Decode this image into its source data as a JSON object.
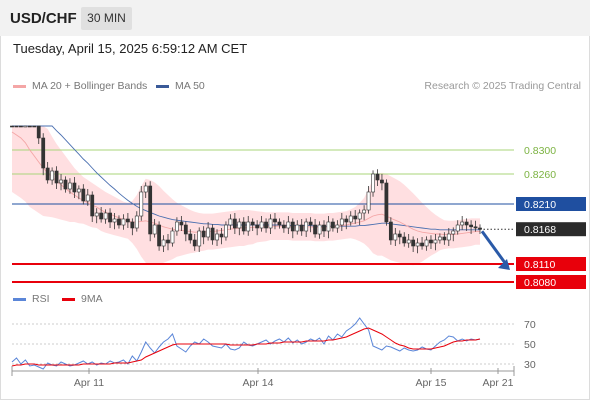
{
  "header": {
    "symbol": "USD/CHF",
    "timeframe": "30 MIN",
    "datetime": "Tuesday, April 15, 2025 6:59:12 AM CET"
  },
  "legend": {
    "ma20_label": "MA 20 + Bollinger Bands",
    "ma50_label": "MA 50",
    "rsi_label": "RSI",
    "rsi_ma_label": "9MA",
    "credit": "Research © 2025 Trading Central"
  },
  "colors": {
    "candle": "#333333",
    "band_fill": "#ffd9dc",
    "ma20": "#f4a6a6",
    "ma50": "#4a6fb0",
    "resistance": "#a8d47a",
    "support": "#e8000b",
    "pivot": "#1f4fa0",
    "rsi": "#5b86d8",
    "rsi_ma": "#e8000b",
    "arrow": "#2a5aa8"
  },
  "chart_data": [
    {
      "type": "candlestick",
      "title": "USD/CHF",
      "timeframe": "30 MIN",
      "ylim": [
        0.807,
        0.839
      ],
      "last_price": 0.8168,
      "levels": [
        {
          "label": "0.8300",
          "value": 0.83,
          "kind": "resistance"
        },
        {
          "label": "0.8260",
          "value": 0.826,
          "kind": "resistance"
        },
        {
          "label": "0.8210",
          "value": 0.821,
          "kind": "pivot"
        },
        {
          "label": "0.8168",
          "value": 0.8168,
          "kind": "last"
        },
        {
          "label": "0.8110",
          "value": 0.811,
          "kind": "support"
        },
        {
          "label": "0.8080",
          "value": 0.808,
          "kind": "support"
        }
      ],
      "x_ticks": [
        "Apr 11",
        "Apr 14",
        "Apr 15",
        "Apr 21"
      ],
      "close": [
        0.844,
        0.842,
        0.84,
        0.842,
        0.8395,
        0.836,
        0.832,
        0.827,
        0.825,
        0.8265,
        0.8245,
        0.825,
        0.8235,
        0.8245,
        0.823,
        0.8235,
        0.8215,
        0.8225,
        0.819,
        0.8195,
        0.8185,
        0.8195,
        0.818,
        0.8185,
        0.8175,
        0.8185,
        0.818,
        0.817,
        0.819,
        0.823,
        0.824,
        0.816,
        0.8175,
        0.814,
        0.815,
        0.8145,
        0.8165,
        0.818,
        0.8175,
        0.816,
        0.815,
        0.814,
        0.8165,
        0.8155,
        0.817,
        0.815,
        0.816,
        0.8155,
        0.8175,
        0.8185,
        0.817,
        0.818,
        0.8165,
        0.818,
        0.8175,
        0.817,
        0.818,
        0.817,
        0.8185,
        0.818,
        0.8175,
        0.817,
        0.818,
        0.8165,
        0.8175,
        0.8165,
        0.818,
        0.8175,
        0.816,
        0.8175,
        0.8165,
        0.818,
        0.817,
        0.8175,
        0.8185,
        0.818,
        0.819,
        0.8185,
        0.8195,
        0.82,
        0.823,
        0.826,
        0.825,
        0.8245,
        0.818,
        0.815,
        0.816,
        0.8155,
        0.8145,
        0.815,
        0.814,
        0.8145,
        0.814,
        0.815,
        0.8145,
        0.815,
        0.8155,
        0.815,
        0.816,
        0.8165,
        0.8175,
        0.818,
        0.8175,
        0.8172,
        0.817,
        0.8168
      ],
      "ma20": [
        0.833,
        0.8325,
        0.832,
        0.8312,
        0.83,
        0.829,
        0.828,
        0.827,
        0.8262,
        0.8255,
        0.8248,
        0.8242,
        0.8236,
        0.823,
        0.8225,
        0.822,
        0.8216,
        0.8212,
        0.8208,
        0.8205,
        0.82,
        0.8196,
        0.8193,
        0.819,
        0.8187,
        0.8184,
        0.8182,
        0.818,
        0.818,
        0.8181,
        0.8182,
        0.818,
        0.8178,
        0.8175,
        0.8172,
        0.817,
        0.8168,
        0.8167,
        0.8166,
        0.8165,
        0.8164,
        0.8163,
        0.8163,
        0.8163,
        0.8164,
        0.8164,
        0.8165,
        0.8166,
        0.8167,
        0.8168,
        0.8169,
        0.817,
        0.817,
        0.8171,
        0.8171,
        0.8172,
        0.8172,
        0.8172,
        0.8173,
        0.8173,
        0.8173,
        0.8173,
        0.8173,
        0.8172,
        0.8172,
        0.8172,
        0.8172,
        0.8172,
        0.8171,
        0.8171,
        0.8171,
        0.8172,
        0.8172,
        0.8173,
        0.8174,
        0.8175,
        0.8177,
        0.8178,
        0.818,
        0.8182,
        0.8186,
        0.819,
        0.8192,
        0.8193,
        0.819,
        0.8186,
        0.8183,
        0.818,
        0.8176,
        0.8172,
        0.8168,
        0.8165,
        0.8163,
        0.8162,
        0.8161,
        0.816,
        0.816,
        0.8159,
        0.8159,
        0.8159,
        0.816,
        0.8161,
        0.8162,
        0.8163,
        0.8164,
        0.8164
      ],
      "ma50": [
        0.839,
        0.8387,
        0.8384,
        0.838,
        0.8375,
        0.8369,
        0.8362,
        0.8355,
        0.8347,
        0.834,
        0.8332,
        0.8325,
        0.8317,
        0.8309,
        0.8301,
        0.8293,
        0.8285,
        0.8278,
        0.827,
        0.8262,
        0.8255,
        0.8248,
        0.8241,
        0.8235,
        0.8228,
        0.8222,
        0.8216,
        0.8211,
        0.8206,
        0.8202,
        0.8199,
        0.8196,
        0.8193,
        0.819,
        0.8188,
        0.8186,
        0.8184,
        0.8183,
        0.8182,
        0.8181,
        0.818,
        0.8179,
        0.8178,
        0.8177,
        0.8177,
        0.8176,
        0.8176,
        0.8175,
        0.8175,
        0.8175,
        0.8175,
        0.8175,
        0.8175,
        0.8175,
        0.8175,
        0.8175,
        0.8175,
        0.8175,
        0.8175,
        0.8175,
        0.8175,
        0.8174,
        0.8174,
        0.8174,
        0.8174,
        0.8174,
        0.8174,
        0.8174,
        0.8173,
        0.8173,
        0.8173,
        0.8173,
        0.8173,
        0.8173,
        0.8173,
        0.8173,
        0.8173,
        0.8173,
        0.8174,
        0.8174,
        0.8175,
        0.8176,
        0.8177,
        0.8178,
        0.8178,
        0.8177,
        0.8176,
        0.8175,
        0.8174,
        0.8173,
        0.8172,
        0.8171,
        0.817,
        0.8169,
        0.8168,
        0.8168,
        0.8167,
        0.8167,
        0.8167,
        0.8167,
        0.8167,
        0.8167,
        0.8167,
        0.8167,
        0.8167,
        0.8167
      ],
      "band_upper": [
        0.843,
        0.8425,
        0.842,
        0.841,
        0.8395,
        0.838,
        0.8365,
        0.835,
        0.8335,
        0.8322,
        0.831,
        0.83,
        0.829,
        0.828,
        0.827,
        0.8262,
        0.8255,
        0.825,
        0.8245,
        0.824,
        0.8235,
        0.823,
        0.8226,
        0.8222,
        0.8218,
        0.8214,
        0.8212,
        0.8215,
        0.8225,
        0.824,
        0.8252,
        0.825,
        0.8246,
        0.824,
        0.8232,
        0.8225,
        0.8218,
        0.8212,
        0.8208,
        0.8204,
        0.82,
        0.8197,
        0.8195,
        0.8194,
        0.8194,
        0.8194,
        0.8195,
        0.8196,
        0.8197,
        0.8198,
        0.8199,
        0.82,
        0.82,
        0.82,
        0.8199,
        0.8198,
        0.8197,
        0.8196,
        0.8196,
        0.8196,
        0.8196,
        0.8196,
        0.8196,
        0.8195,
        0.8195,
        0.8195,
        0.8195,
        0.8195,
        0.8194,
        0.8194,
        0.8194,
        0.8195,
        0.8195,
        0.8196,
        0.8197,
        0.8198,
        0.8201,
        0.8205,
        0.8212,
        0.822,
        0.8235,
        0.8252,
        0.826,
        0.8262,
        0.826,
        0.8256,
        0.8252,
        0.8248,
        0.8242,
        0.8235,
        0.8228,
        0.822,
        0.8212,
        0.8205,
        0.8198,
        0.8192,
        0.8187,
        0.8183,
        0.8182,
        0.8182,
        0.8183,
        0.8184,
        0.8185,
        0.8186,
        0.8186,
        0.8186
      ],
      "band_lower": [
        0.823,
        0.8225,
        0.822,
        0.8214,
        0.8205,
        0.82,
        0.8195,
        0.819,
        0.8189,
        0.8188,
        0.8186,
        0.8184,
        0.8182,
        0.818,
        0.818,
        0.8178,
        0.8177,
        0.8174,
        0.8171,
        0.817,
        0.8165,
        0.8162,
        0.816,
        0.8158,
        0.8156,
        0.8154,
        0.8152,
        0.8145,
        0.8135,
        0.8122,
        0.8112,
        0.811,
        0.811,
        0.811,
        0.8112,
        0.8115,
        0.8118,
        0.8122,
        0.8124,
        0.8126,
        0.8128,
        0.8129,
        0.8131,
        0.8132,
        0.8134,
        0.8134,
        0.8135,
        0.8136,
        0.8137,
        0.8138,
        0.8139,
        0.814,
        0.814,
        0.8142,
        0.8143,
        0.8146,
        0.8147,
        0.8148,
        0.815,
        0.815,
        0.815,
        0.815,
        0.815,
        0.8149,
        0.8149,
        0.8149,
        0.8149,
        0.8149,
        0.8148,
        0.8148,
        0.8148,
        0.8149,
        0.8149,
        0.815,
        0.8151,
        0.8152,
        0.8153,
        0.8151,
        0.8148,
        0.8144,
        0.8137,
        0.8128,
        0.8124,
        0.8124,
        0.812,
        0.8116,
        0.8114,
        0.8112,
        0.811,
        0.8109,
        0.8108,
        0.811,
        0.8114,
        0.8119,
        0.8124,
        0.8128,
        0.8133,
        0.8135,
        0.8136,
        0.8136,
        0.8137,
        0.8138,
        0.8139,
        0.814,
        0.8142,
        0.8142
      ]
    },
    {
      "type": "line",
      "title": "RSI",
      "ylim": [
        22,
        82
      ],
      "y_ticks": [
        70,
        50,
        30
      ],
      "series": [
        {
          "name": "RSI",
          "values": [
            32,
            36,
            30,
            34,
            28,
            29,
            27,
            25,
            31,
            29,
            28,
            32,
            30,
            28,
            29,
            31,
            33,
            30,
            32,
            29,
            31,
            30,
            33,
            31,
            32,
            34,
            30,
            38,
            33,
            42,
            52,
            46,
            41,
            47,
            52,
            55,
            60,
            48,
            45,
            42,
            48,
            52,
            50,
            55,
            52,
            48,
            47,
            46,
            50,
            45,
            44,
            46,
            52,
            49,
            48,
            50,
            52,
            54,
            50,
            53,
            55,
            52,
            56,
            51,
            54,
            50,
            52,
            55,
            53,
            56,
            50,
            58,
            54,
            60,
            57,
            63,
            66,
            70,
            76,
            70,
            64,
            48,
            46,
            44,
            48,
            47,
            45,
            43,
            46,
            44,
            43,
            44,
            47,
            45,
            44,
            48,
            52,
            54,
            58,
            57,
            53,
            55,
            53,
            55,
            54,
            55
          ]
        },
        {
          "name": "9MA",
          "values": [
            28,
            29,
            29,
            30,
            30,
            30,
            29,
            29,
            29,
            29,
            29,
            29,
            29,
            29,
            29,
            29,
            30,
            30,
            30,
            30,
            30,
            30,
            30,
            31,
            31,
            31,
            31,
            32,
            33,
            34,
            37,
            39,
            41,
            43,
            45,
            47,
            49,
            50,
            50,
            50,
            50,
            50,
            50,
            50,
            50,
            50,
            50,
            50,
            50,
            49,
            49,
            49,
            49,
            49,
            49,
            50,
            50,
            50,
            51,
            51,
            51,
            52,
            52,
            52,
            52,
            52,
            53,
            53,
            53,
            53,
            53,
            54,
            54,
            55,
            56,
            57,
            59,
            61,
            63,
            65,
            66,
            64,
            62,
            60,
            57,
            54,
            51,
            49,
            48,
            46,
            45,
            45,
            45,
            45,
            45,
            46,
            47,
            48,
            50,
            52,
            53,
            53,
            54,
            54,
            54,
            55
          ]
        }
      ]
    }
  ]
}
